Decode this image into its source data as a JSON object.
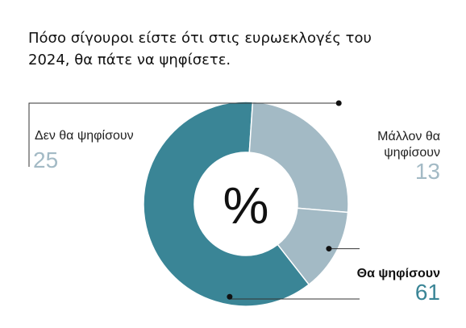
{
  "title": "Πόσο σίγουροι είστε ότι στις ευρωεκλογές του 2024, θα πάτε να ψηφίσετε.",
  "chart_data": {
    "type": "pie",
    "subtype": "donut",
    "center_label": "%",
    "categories": [
      "Θα ψηφίσουν",
      "Δεν θα ψηφίσουν",
      "Μάλλον θα ψηφίσουν"
    ],
    "values": [
      61,
      25,
      13
    ],
    "colors": [
      "#3a8596",
      "#a3bac5",
      "#a3bac5"
    ],
    "value_colors": [
      "#3a8596",
      "#a3bac5",
      "#a3bac5"
    ]
  }
}
